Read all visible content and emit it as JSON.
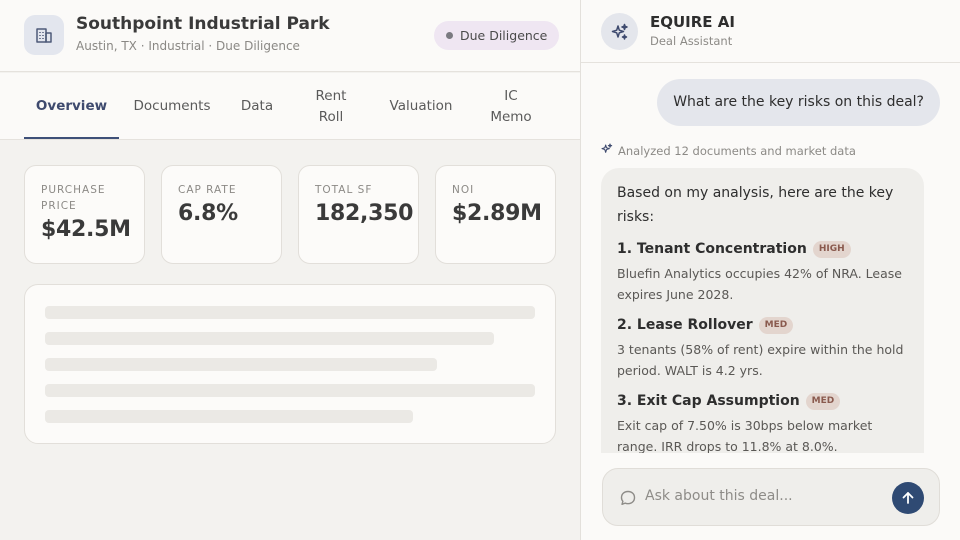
{
  "property": {
    "title": "Southpoint Industrial Park",
    "subtitle": "Austin, TX · Industrial · Due Diligence",
    "status": "Due Diligence",
    "icon": "building-icon"
  },
  "tabs": [
    {
      "label": "Overview",
      "active": true
    },
    {
      "label": "Documents"
    },
    {
      "label": "Data"
    },
    {
      "label": "Rent Roll"
    },
    {
      "label": "Valuation"
    },
    {
      "label": "IC Memo"
    }
  ],
  "metrics": [
    {
      "label": "PURCHASE PRICE",
      "value": "$42.5M"
    },
    {
      "label": "CAP RATE",
      "value": "6.8%"
    },
    {
      "label": "TOTAL SF",
      "value": "182,350"
    },
    {
      "label": "NOI",
      "value": "$2.89M"
    }
  ],
  "assistant": {
    "title": "EQUIRE AI",
    "subtitle": "Deal Assistant",
    "icon": "sparkle-icon",
    "user_message": "What are the key risks on this deal?",
    "analyzed_note": "Analyzed 12 documents and market data",
    "reply_intro": "Based on my analysis, here are the key risks:",
    "risks": [
      {
        "title": "1. Tenant Concentration",
        "tag": "HIGH",
        "body": "Bluefin Analytics occupies 42% of NRA. Lease expires June 2028."
      },
      {
        "title": "2. Lease Rollover",
        "tag": "MED",
        "body": "3 tenants (58% of rent) expire within the hold period. WALT is 4.2 yrs."
      },
      {
        "title": "3. Exit Cap Assumption",
        "tag": "MED",
        "body": "Exit cap of 7.50% is 30bps below market range. IRR drops to 11.8% at 8.0%."
      }
    ],
    "input_placeholder": "Ask about this deal..."
  },
  "colors": {
    "accent": "#3e5078",
    "send_button": "#2f4a73",
    "badge_bg": "#efe6f2"
  }
}
